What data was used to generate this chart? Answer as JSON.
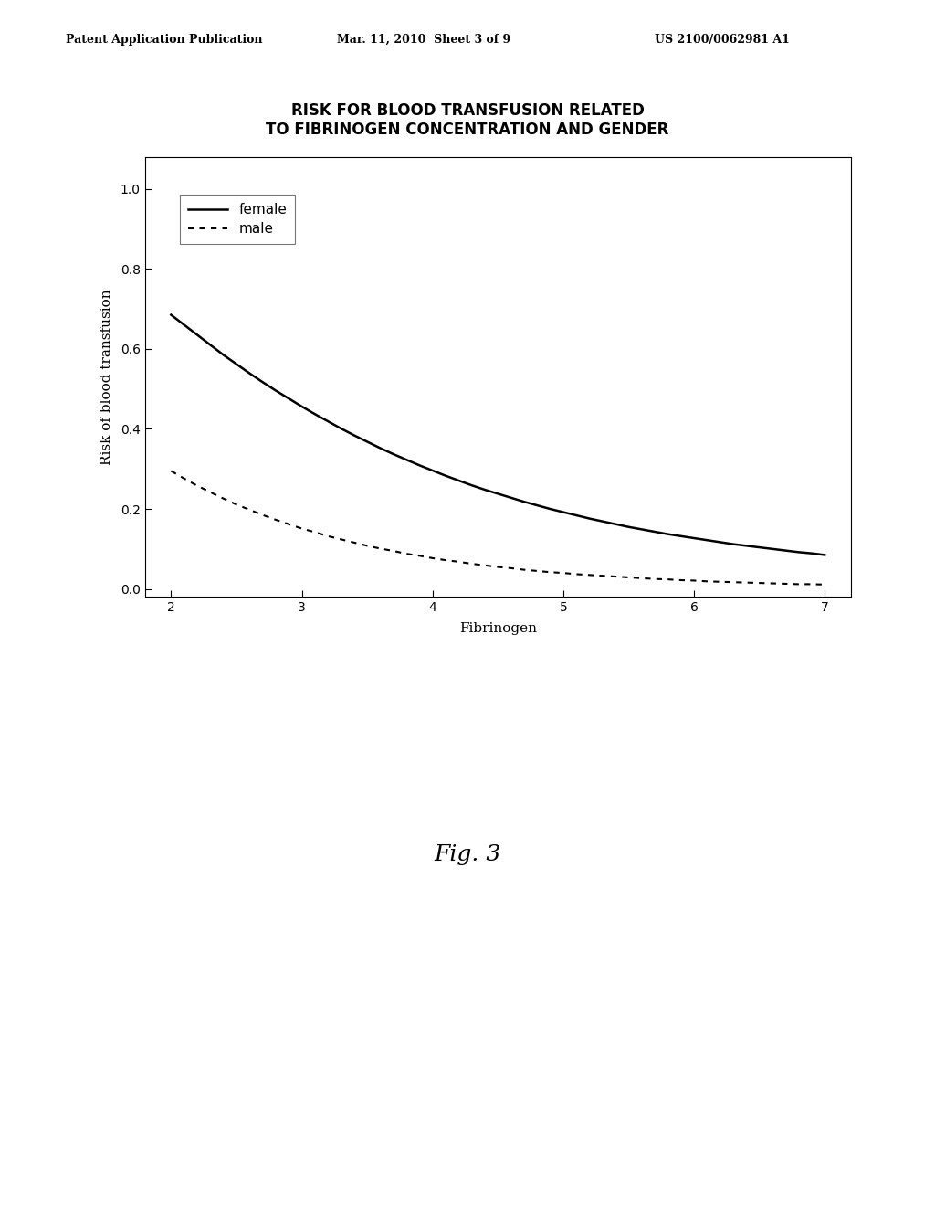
{
  "title_line1": "RISK FOR BLOOD TRANSFUSION RELATED",
  "title_line2": "TO FIBRINOGEN CONCENTRATION AND GENDER",
  "xlabel": "Fibrinogen",
  "ylabel": "Risk of blood transfusion",
  "xlim": [
    1.8,
    7.2
  ],
  "ylim": [
    -0.02,
    1.08
  ],
  "xticks": [
    2,
    3,
    4,
    5,
    6,
    7
  ],
  "yticks": [
    0.0,
    0.2,
    0.4,
    0.6,
    0.8,
    1.0
  ],
  "header_left": "Patent Application Publication",
  "header_mid": "Mar. 11, 2010  Sheet 3 of 9",
  "header_right": "US 2100/0062981 A1",
  "fig_label": "Fig. 3",
  "female_x": [
    2.0,
    2.1,
    2.2,
    2.3,
    2.4,
    2.5,
    2.6,
    2.7,
    2.8,
    2.9,
    3.0,
    3.1,
    3.2,
    3.3,
    3.4,
    3.5,
    3.6,
    3.7,
    3.8,
    3.9,
    4.0,
    4.1,
    4.2,
    4.3,
    4.4,
    4.5,
    4.6,
    4.7,
    4.8,
    4.9,
    5.0,
    5.1,
    5.2,
    5.3,
    5.4,
    5.5,
    5.6,
    5.7,
    5.8,
    5.9,
    6.0,
    6.1,
    6.2,
    6.3,
    6.4,
    6.5,
    6.6,
    6.7,
    6.8,
    6.9,
    7.0
  ],
  "female_y": [
    0.685,
    0.66,
    0.635,
    0.61,
    0.585,
    0.562,
    0.539,
    0.517,
    0.496,
    0.476,
    0.456,
    0.437,
    0.419,
    0.401,
    0.384,
    0.368,
    0.352,
    0.337,
    0.323,
    0.309,
    0.296,
    0.283,
    0.271,
    0.259,
    0.248,
    0.238,
    0.228,
    0.218,
    0.209,
    0.2,
    0.192,
    0.184,
    0.176,
    0.169,
    0.162,
    0.155,
    0.149,
    0.143,
    0.137,
    0.132,
    0.127,
    0.122,
    0.117,
    0.112,
    0.108,
    0.104,
    0.1,
    0.096,
    0.092,
    0.089,
    0.085
  ],
  "male_x": [
    2.0,
    2.1,
    2.2,
    2.3,
    2.4,
    2.5,
    2.6,
    2.7,
    2.8,
    2.9,
    3.0,
    3.1,
    3.2,
    3.3,
    3.4,
    3.5,
    3.6,
    3.7,
    3.8,
    3.9,
    4.0,
    4.1,
    4.2,
    4.3,
    4.4,
    4.5,
    4.6,
    4.7,
    4.8,
    4.9,
    5.0,
    5.1,
    5.2,
    5.3,
    5.4,
    5.5,
    5.6,
    5.7,
    5.8,
    5.9,
    6.0,
    6.1,
    6.2,
    6.3,
    6.4,
    6.5,
    6.6,
    6.7,
    6.8,
    6.9,
    7.0
  ],
  "male_y": [
    0.295,
    0.276,
    0.258,
    0.242,
    0.226,
    0.211,
    0.198,
    0.185,
    0.173,
    0.162,
    0.151,
    0.142,
    0.132,
    0.124,
    0.116,
    0.108,
    0.101,
    0.095,
    0.088,
    0.083,
    0.077,
    0.072,
    0.068,
    0.063,
    0.059,
    0.055,
    0.052,
    0.048,
    0.045,
    0.042,
    0.04,
    0.037,
    0.035,
    0.033,
    0.031,
    0.029,
    0.027,
    0.025,
    0.024,
    0.022,
    0.021,
    0.019,
    0.018,
    0.017,
    0.016,
    0.015,
    0.014,
    0.013,
    0.012,
    0.012,
    0.011
  ],
  "background_color": "#ffffff",
  "line_color": "#000000",
  "title_fontsize": 12,
  "axis_label_fontsize": 11,
  "tick_fontsize": 10,
  "header_fontsize": 9,
  "fig_label_fontsize": 18
}
